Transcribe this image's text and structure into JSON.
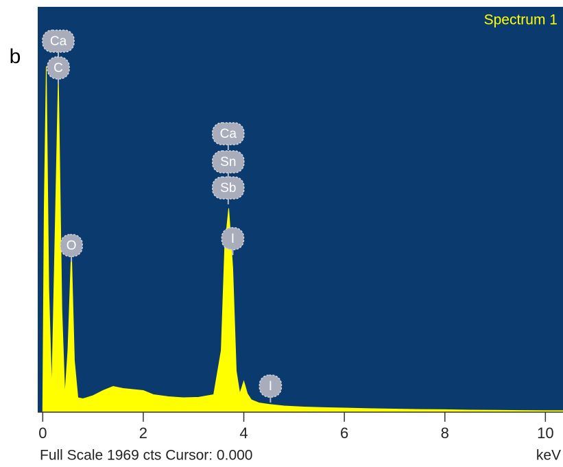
{
  "chart_data": {
    "type": "area",
    "panel_label": "b",
    "series": [
      {
        "name": "Spectrum 1",
        "color": "#ffff00",
        "values": [
          0,
          1000,
          1680,
          600,
          100,
          800,
          1640,
          500,
          80,
          300,
          790,
          250,
          70,
          65,
          80,
          105,
          125,
          115,
          110,
          105,
          85,
          75,
          70,
          72,
          85,
          300,
          800,
          990,
          700,
          200,
          90,
          150,
          90,
          60,
          45,
          38,
          30,
          25,
          22,
          20,
          17,
          15,
          13,
          12,
          10,
          9,
          8,
          7,
          7
        ]
      }
    ],
    "x": [
      0,
      0.03,
      0.07,
      0.12,
      0.18,
      0.24,
      0.31,
      0.38,
      0.44,
      0.5,
      0.57,
      0.63,
      0.7,
      0.8,
      1.0,
      1.2,
      1.4,
      1.6,
      1.8,
      2.0,
      2.2,
      2.5,
      2.8,
      3.1,
      3.4,
      3.55,
      3.62,
      3.7,
      3.78,
      3.85,
      3.92,
      4.0,
      4.07,
      4.15,
      4.3,
      4.5,
      4.8,
      5.2,
      5.6,
      6.0,
      6.5,
      7.0,
      7.5,
      8.0,
      8.5,
      9.0,
      9.5,
      10.0,
      10.35
    ],
    "xlim": [
      -0.1,
      10.35
    ],
    "ylim": [
      0,
      1969
    ],
    "xticks": [
      0,
      2,
      4,
      6,
      8,
      10
    ],
    "xlabel": "keV",
    "footer": "Full Scale 1969 cts Cursor: 0.000",
    "background": "#0b3a6e",
    "annotations": [
      {
        "text": "Ca",
        "x": 0.31
      },
      {
        "text": "C",
        "x": 0.31
      },
      {
        "text": "O",
        "x": 0.57
      },
      {
        "text": "Ca",
        "x": 3.69
      },
      {
        "text": "Sn",
        "x": 3.69
      },
      {
        "text": "Sb",
        "x": 3.69
      },
      {
        "text": "I",
        "x": 3.78
      },
      {
        "text": "I",
        "x": 4.53
      }
    ]
  }
}
